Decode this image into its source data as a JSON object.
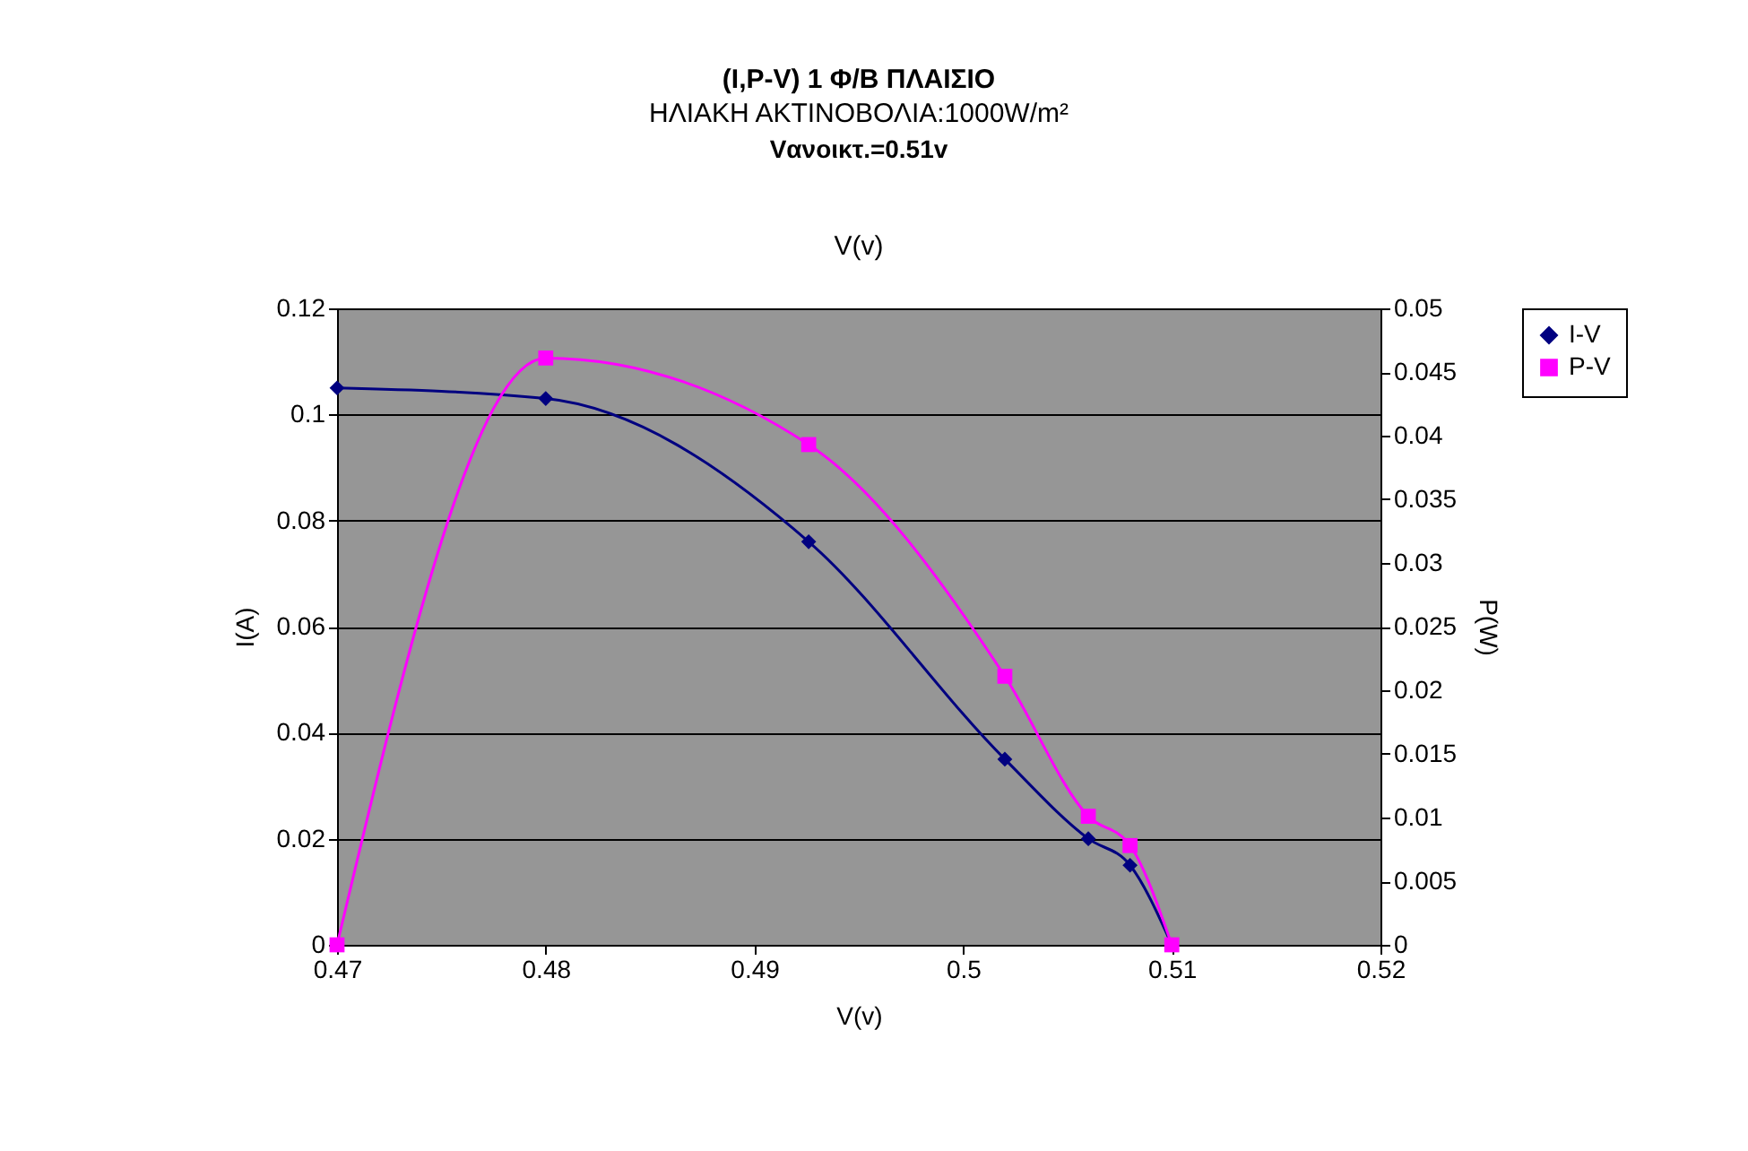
{
  "chart_data": {
    "type": "line",
    "title": "(I,P-V) 1 Φ/Β ΠΛΑΙΣΙΟ",
    "subtitle": "ΗΛΙΑΚΗ   ΑΚΤΙΝΟΒΟΛΙΑ:1000W/m²",
    "annotations": [
      "Vανοικτ.=0.51v",
      "V(v)"
    ],
    "xlabel": "V(v)",
    "ylabel": "I(A)",
    "y2label": "P(W)",
    "x": [
      0.47,
      0.48,
      0.4926,
      0.502,
      0.506,
      0.508,
      0.51
    ],
    "series": [
      {
        "name": "I-V",
        "color": "#000080",
        "marker": "diamond",
        "values": [
          0.105,
          0.103,
          0.076,
          0.035,
          0.02,
          0.015,
          0
        ]
      },
      {
        "name": "P-V",
        "color": "#ff00ff",
        "marker": "square",
        "axis": "y2",
        "values": [
          0,
          0.0461,
          0.0393,
          0.0211,
          0.0101,
          0.0078,
          0
        ]
      }
    ],
    "xlim": [
      0.47,
      0.52
    ],
    "xticks": [
      0.47,
      0.48,
      0.49,
      0.5,
      0.51,
      0.52
    ],
    "ylim": [
      0,
      0.12
    ],
    "yticks": [
      0,
      0.02,
      0.04,
      0.06,
      0.08,
      0.1,
      0.12
    ],
    "y2lim": [
      0,
      0.05
    ],
    "y2ticks": [
      0,
      0.005,
      0.01,
      0.015,
      0.02,
      0.025,
      0.03,
      0.035,
      0.04,
      0.045,
      0.05
    ],
    "grid": "y",
    "legend": "right",
    "line_style": "solid"
  }
}
